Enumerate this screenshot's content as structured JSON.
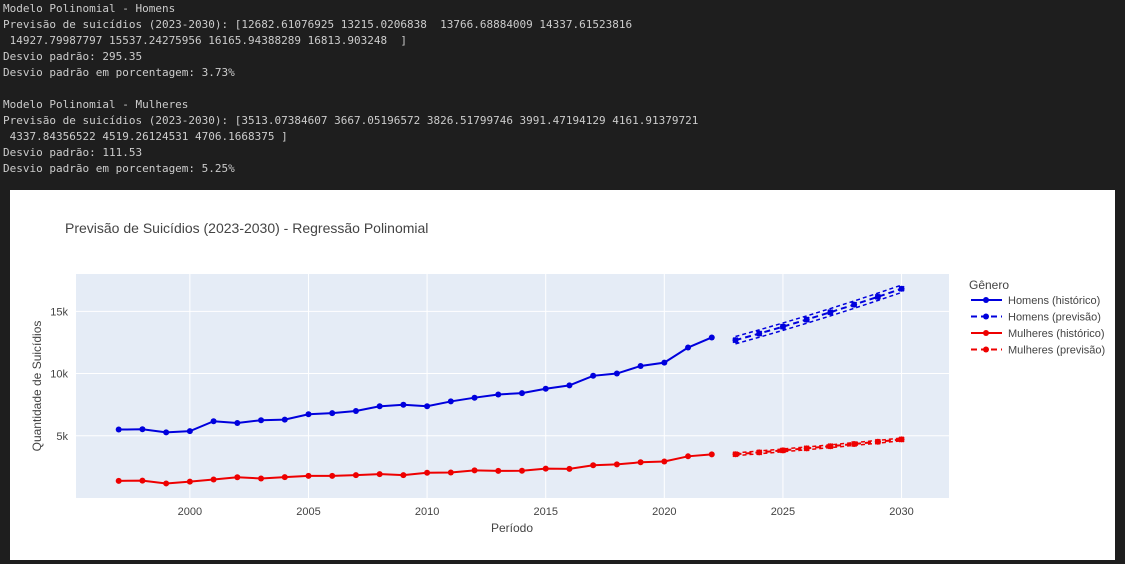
{
  "console": {
    "lines": [
      "Modelo Polinomial - Homens",
      "Previsão de suicídios (2023-2030): [12682.61076925 13215.0206838  13766.68884009 14337.61523816",
      " 14927.79987797 15537.24275956 16165.94388289 16813.903248  ]",
      "Desvio padrão: 295.35",
      "Desvio padrão em porcentagem: 3.73%",
      "",
      "Modelo Polinomial - Mulheres",
      "Previsão de suicídios (2023-2030): [3513.07384607 3667.05196572 3826.51799746 3991.47194129 4161.91379721",
      " 4337.84356522 4519.26124531 4706.1668375 ]",
      "Desvio padrão: 111.53",
      "Desvio padrão em porcentagem: 5.25%"
    ]
  },
  "chart_data": {
    "type": "line",
    "title": "Previsão de Suicídios (2023-2030) - Regressão Polinomial",
    "xlabel": "Período",
    "ylabel": "Quantidade de Suicídios",
    "xlim": [
      1995.2,
      2032.0
    ],
    "ylim": [
      0,
      18000
    ],
    "xticks": [
      2000,
      2005,
      2010,
      2015,
      2020,
      2025,
      2030
    ],
    "xtick_labels": [
      "2000",
      "2005",
      "2010",
      "2015",
      "2020",
      "2025",
      "2030"
    ],
    "yticks": [
      5000,
      10000,
      15000
    ],
    "ytick_labels": [
      "5k",
      "10k",
      "15k"
    ],
    "grid": true,
    "legend_title": "Gênero",
    "legend_position": "right",
    "colors": {
      "homens": "#0000dd",
      "mulheres": "#ee0000",
      "plot_bg": "#e5ecf6",
      "grid": "#ffffff",
      "text": "#444444"
    },
    "series": [
      {
        "name": "Homens (histórico)",
        "color": "#0000dd",
        "dash": "solid",
        "x": [
          1997,
          1998,
          1999,
          2000,
          2001,
          2002,
          2003,
          2004,
          2005,
          2006,
          2007,
          2008,
          2009,
          2010,
          2011,
          2012,
          2013,
          2014,
          2015,
          2016,
          2017,
          2018,
          2019,
          2020,
          2021,
          2022
        ],
        "y": [
          5500,
          5520,
          5270,
          5370,
          6170,
          6030,
          6250,
          6300,
          6730,
          6820,
          6990,
          7370,
          7490,
          7370,
          7760,
          8060,
          8320,
          8430,
          8780,
          9050,
          9820,
          10000,
          10610,
          10880,
          12090,
          12900
        ]
      },
      {
        "name": "Homens (previsão)",
        "color": "#0000dd",
        "dash": "dash",
        "x": [
          2023,
          2024,
          2025,
          2026,
          2027,
          2028,
          2029,
          2030
        ],
        "y": [
          12682.61,
          13215.02,
          13766.69,
          14337.62,
          14927.8,
          15537.24,
          16165.94,
          16813.9
        ]
      },
      {
        "name": "Mulheres (histórico)",
        "color": "#ee0000",
        "dash": "solid",
        "x": [
          1997,
          1998,
          1999,
          2000,
          2001,
          2002,
          2003,
          2004,
          2005,
          2006,
          2007,
          2008,
          2009,
          2010,
          2011,
          2012,
          2013,
          2014,
          2015,
          2016,
          2017,
          2018,
          2019,
          2020,
          2021,
          2022
        ],
        "y": [
          1380,
          1400,
          1170,
          1320,
          1490,
          1670,
          1570,
          1680,
          1780,
          1780,
          1840,
          1920,
          1840,
          2030,
          2050,
          2220,
          2180,
          2190,
          2360,
          2340,
          2630,
          2700,
          2870,
          2930,
          3350,
          3510
        ]
      },
      {
        "name": "Mulheres (previsão)",
        "color": "#ee0000",
        "dash": "dash",
        "x": [
          2023,
          2024,
          2025,
          2026,
          2027,
          2028,
          2029,
          2030
        ],
        "y": [
          3513.07,
          3667.05,
          3826.52,
          3991.47,
          4161.91,
          4337.84,
          4519.26,
          4706.17
        ]
      }
    ],
    "bands": [
      {
        "series": "Homens (previsão)",
        "color": "#0000dd",
        "std": 295.35
      },
      {
        "series": "Mulheres (previsão)",
        "color": "#ee0000",
        "std": 111.53
      }
    ]
  }
}
